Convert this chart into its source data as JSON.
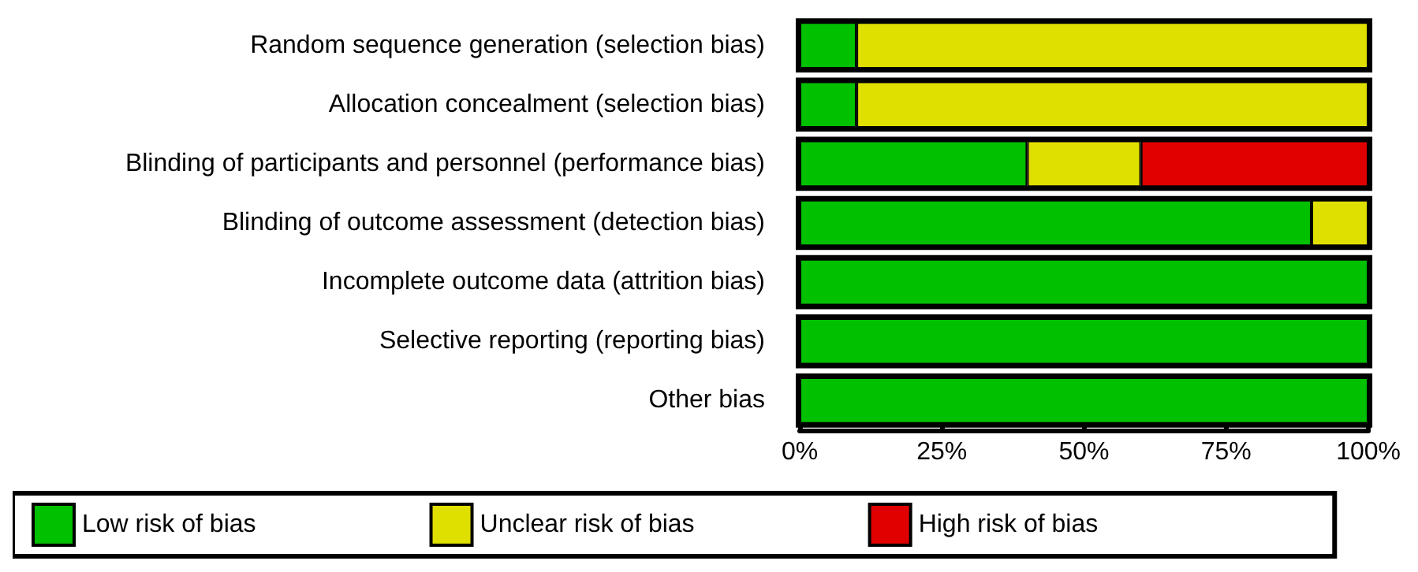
{
  "chart_data": {
    "type": "bar",
    "orientation": "horizontal",
    "stacked": true,
    "categories": [
      "Random sequence generation (selection bias)",
      "Allocation concealment (selection bias)",
      "Blinding of participants and personnel (performance bias)",
      "Blinding of outcome assessment (detection bias)",
      "Incomplete outcome data (attrition bias)",
      "Selective reporting (reporting bias)",
      "Other bias"
    ],
    "series": [
      {
        "name": "Low risk of bias",
        "color": "#00c000",
        "values": [
          10,
          10,
          40,
          90,
          100,
          100,
          100
        ]
      },
      {
        "name": "Unclear risk of bias",
        "color": "#e0e000",
        "values": [
          90,
          90,
          20,
          10,
          0,
          0,
          0
        ]
      },
      {
        "name": "High risk of bias",
        "color": "#e00000",
        "values": [
          0,
          0,
          40,
          0,
          0,
          0,
          0
        ]
      }
    ],
    "xlim": [
      0,
      100
    ],
    "xticks": [
      {
        "value": 0,
        "label": "0%"
      },
      {
        "value": 25,
        "label": "25%"
      },
      {
        "value": 50,
        "label": "50%"
      },
      {
        "value": 75,
        "label": "75%"
      },
      {
        "value": 100,
        "label": "100%"
      }
    ],
    "grid": false,
    "legend": "bottom"
  }
}
